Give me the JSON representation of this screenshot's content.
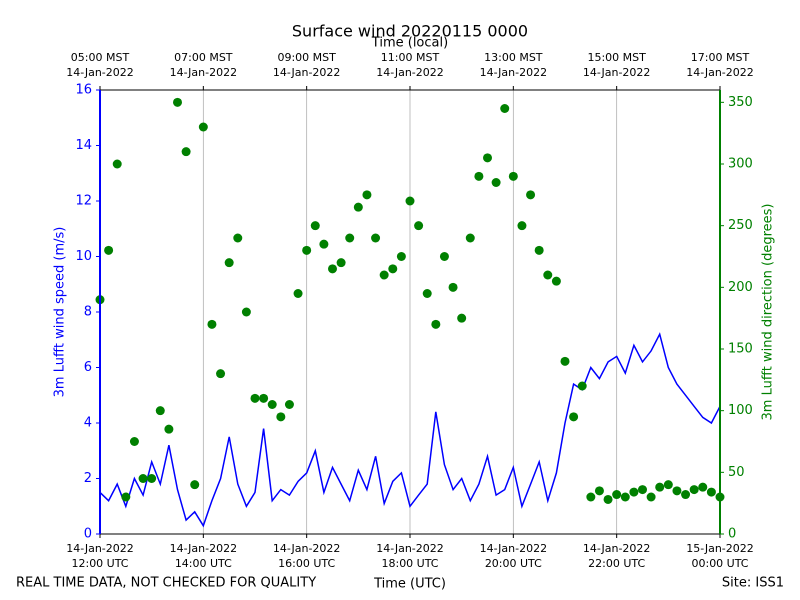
{
  "chart_data": {
    "type": "line",
    "title": "Surface wind 20220115 0000",
    "x2label": "Time (local)",
    "xlabel": "Time (UTC)",
    "ylabel": "3m Lufft wind speed (m/s)",
    "y2label": "3m Lufft wind direction (degrees)",
    "footer_left": "REAL TIME DATA, NOT CHECKED FOR QUALITY",
    "footer_right": "Site: ISS1",
    "xgrid": true,
    "xlim": [
      "2022-01-14T12:00",
      "2022-01-15T00:00"
    ],
    "xticks": [
      {
        "value": "2022-01-14T12:00",
        "label": [
          "14-Jan-2022",
          "12:00 UTC"
        ]
      },
      {
        "value": "2022-01-14T14:00",
        "label": [
          "14-Jan-2022",
          "14:00 UTC"
        ]
      },
      {
        "value": "2022-01-14T16:00",
        "label": [
          "14-Jan-2022",
          "16:00 UTC"
        ]
      },
      {
        "value": "2022-01-14T18:00",
        "label": [
          "14-Jan-2022",
          "18:00 UTC"
        ]
      },
      {
        "value": "2022-01-14T20:00",
        "label": [
          "14-Jan-2022",
          "20:00 UTC"
        ]
      },
      {
        "value": "2022-01-14T22:00",
        "label": [
          "14-Jan-2022",
          "22:00 UTC"
        ]
      },
      {
        "value": "2022-01-15T00:00",
        "label": [
          "15-Jan-2022",
          "00:00 UTC"
        ]
      }
    ],
    "x2lim": [
      "2022-01-14T05:00",
      "2022-01-14T17:00"
    ],
    "x2ticks": [
      {
        "value": "2022-01-14T05:00",
        "label": [
          "05:00 MST",
          "14-Jan-2022"
        ]
      },
      {
        "value": "2022-01-14T07:00",
        "label": [
          "07:00 MST",
          "14-Jan-2022"
        ]
      },
      {
        "value": "2022-01-14T09:00",
        "label": [
          "09:00 MST",
          "14-Jan-2022"
        ]
      },
      {
        "value": "2022-01-14T11:00",
        "label": [
          "11:00 MST",
          "14-Jan-2022"
        ]
      },
      {
        "value": "2022-01-14T13:00",
        "label": [
          "13:00 MST",
          "14-Jan-2022"
        ]
      },
      {
        "value": "2022-01-14T15:00",
        "label": [
          "15:00 MST",
          "14-Jan-2022"
        ]
      },
      {
        "value": "2022-01-14T17:00",
        "label": [
          "17:00 MST",
          "14-Jan-2022"
        ]
      }
    ],
    "ylim": [
      0,
      16
    ],
    "yticks": [
      0,
      2,
      4,
      6,
      8,
      10,
      12,
      14,
      16
    ],
    "y2lim": [
      0,
      360
    ],
    "y2ticks": [
      0,
      50,
      100,
      150,
      200,
      250,
      300,
      350
    ],
    "x": [
      "2022-01-14T12:00",
      "2022-01-14T12:10",
      "2022-01-14T12:20",
      "2022-01-14T12:30",
      "2022-01-14T12:40",
      "2022-01-14T12:50",
      "2022-01-14T13:00",
      "2022-01-14T13:10",
      "2022-01-14T13:20",
      "2022-01-14T13:30",
      "2022-01-14T13:40",
      "2022-01-14T13:50",
      "2022-01-14T14:00",
      "2022-01-14T14:10",
      "2022-01-14T14:20",
      "2022-01-14T14:30",
      "2022-01-14T14:40",
      "2022-01-14T14:50",
      "2022-01-14T15:00",
      "2022-01-14T15:10",
      "2022-01-14T15:20",
      "2022-01-14T15:30",
      "2022-01-14T15:40",
      "2022-01-14T15:50",
      "2022-01-14T16:00",
      "2022-01-14T16:10",
      "2022-01-14T16:20",
      "2022-01-14T16:30",
      "2022-01-14T16:40",
      "2022-01-14T16:50",
      "2022-01-14T17:00",
      "2022-01-14T17:10",
      "2022-01-14T17:20",
      "2022-01-14T17:30",
      "2022-01-14T17:40",
      "2022-01-14T17:50",
      "2022-01-14T18:00",
      "2022-01-14T18:10",
      "2022-01-14T18:20",
      "2022-01-14T18:30",
      "2022-01-14T18:40",
      "2022-01-14T18:50",
      "2022-01-14T19:00",
      "2022-01-14T19:10",
      "2022-01-14T19:20",
      "2022-01-14T19:30",
      "2022-01-14T19:40",
      "2022-01-14T19:50",
      "2022-01-14T20:00",
      "2022-01-14T20:10",
      "2022-01-14T20:20",
      "2022-01-14T20:30",
      "2022-01-14T20:40",
      "2022-01-14T20:50",
      "2022-01-14T21:00",
      "2022-01-14T21:10",
      "2022-01-14T21:20",
      "2022-01-14T21:30",
      "2022-01-14T21:40",
      "2022-01-14T21:50",
      "2022-01-14T22:00",
      "2022-01-14T22:10",
      "2022-01-14T22:20",
      "2022-01-14T22:30",
      "2022-01-14T22:40",
      "2022-01-14T22:50",
      "2022-01-14T23:00",
      "2022-01-14T23:10",
      "2022-01-14T23:20",
      "2022-01-14T23:30",
      "2022-01-14T23:40",
      "2022-01-14T23:50",
      "2022-01-15T00:00"
    ],
    "series": [
      {
        "type": "line",
        "axis": "y",
        "color": "#0000ff",
        "values": [
          1.5,
          1.2,
          1.8,
          1.0,
          2.0,
          1.4,
          2.6,
          1.8,
          3.2,
          1.6,
          0.5,
          0.8,
          0.3,
          1.2,
          2.0,
          3.5,
          1.8,
          1.0,
          1.5,
          3.8,
          1.2,
          1.6,
          1.4,
          1.9,
          2.2,
          3.0,
          1.5,
          2.4,
          1.8,
          1.2,
          2.3,
          1.6,
          2.8,
          1.1,
          1.9,
          2.2,
          1.0,
          1.4,
          1.8,
          4.4,
          2.5,
          1.6,
          2.0,
          1.2,
          1.8,
          2.8,
          1.4,
          1.6,
          2.4,
          1.0,
          1.8,
          2.6,
          1.2,
          2.2,
          4.0,
          5.4,
          5.2,
          6.0,
          5.6,
          6.2,
          6.4,
          5.8,
          6.8,
          6.2,
          6.6,
          7.2,
          6.0,
          5.4,
          5.0,
          4.6,
          4.2,
          4.0,
          4.6
        ]
      },
      {
        "type": "scatter",
        "axis": "y2",
        "color": "#008000",
        "values": [
          190,
          230,
          300,
          30,
          75,
          45,
          45,
          100,
          85,
          350,
          310,
          40,
          330,
          170,
          130,
          220,
          240,
          180,
          110,
          110,
          105,
          95,
          105,
          195,
          230,
          250,
          235,
          215,
          220,
          240,
          265,
          275,
          240,
          210,
          215,
          225,
          270,
          250,
          195,
          170,
          225,
          200,
          175,
          240,
          290,
          305,
          285,
          345,
          290,
          250,
          275,
          230,
          210,
          205,
          140,
          95,
          120,
          30,
          35,
          28,
          32,
          30,
          34,
          36,
          30,
          38,
          40,
          35,
          32,
          36,
          38,
          34,
          30
        ]
      }
    ]
  }
}
